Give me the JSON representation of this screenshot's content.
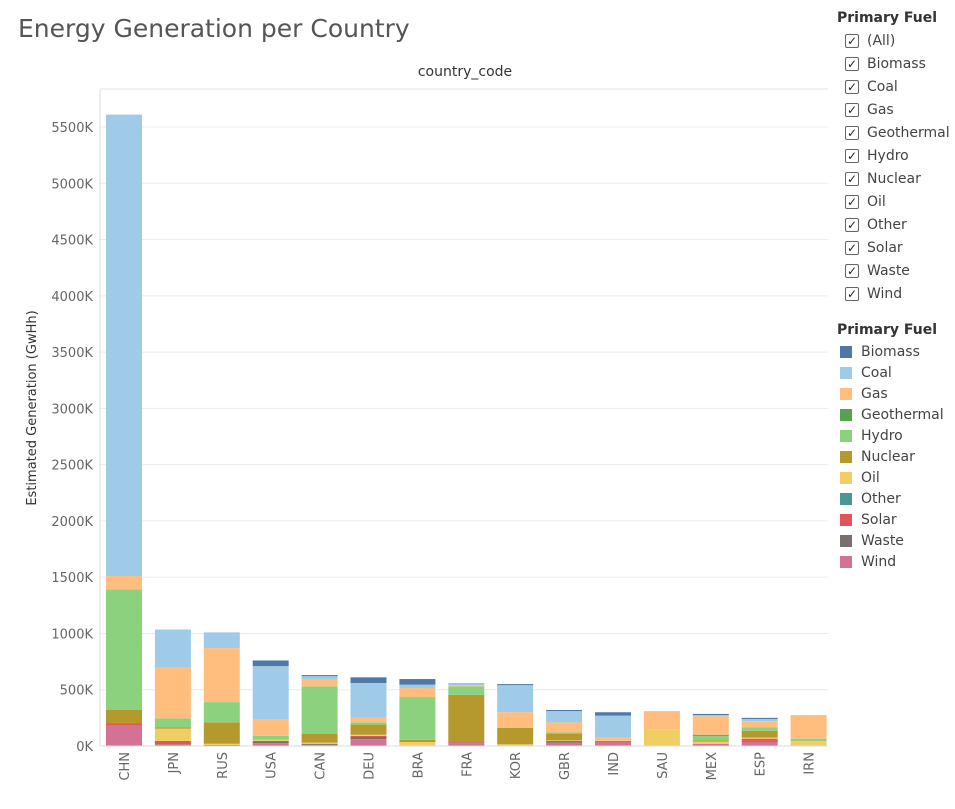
{
  "chart_data": {
    "type": "bar",
    "stacked": true,
    "title": "Energy Generation per Country",
    "column_header": "country_code",
    "xlabel": "",
    "ylabel": "Estimated Generation (GwHh)",
    "ylim": [
      0,
      5600
    ],
    "y_ticks": [
      0,
      500,
      1000,
      1500,
      2000,
      2500,
      3000,
      3500,
      4000,
      4500,
      5000,
      5500
    ],
    "y_tick_labels": [
      "0K",
      "500K",
      "1000K",
      "1500K",
      "2000K",
      "2500K",
      "3000K",
      "3500K",
      "4000K",
      "4500K",
      "5000K",
      "5500K"
    ],
    "grid": true,
    "categories": [
      "CHN",
      "JPN",
      "RUS",
      "USA",
      "CAN",
      "DEU",
      "BRA",
      "FRA",
      "KOR",
      "GBR",
      "IND",
      "SAU",
      "MEX",
      "ESP",
      "IRN"
    ],
    "series": [
      {
        "name": "Wind",
        "color": "#d37295",
        "values": [
          180,
          10,
          5,
          25,
          10,
          60,
          5,
          25,
          0,
          30,
          40,
          0,
          20,
          40,
          0
        ]
      },
      {
        "name": "Waste",
        "color": "#79706e",
        "values": [
          0,
          5,
          5,
          15,
          10,
          20,
          0,
          5,
          0,
          10,
          0,
          0,
          0,
          5,
          0
        ]
      },
      {
        "name": "Solar",
        "color": "#e15759",
        "values": [
          20,
          30,
          0,
          5,
          0,
          10,
          0,
          5,
          0,
          5,
          5,
          0,
          0,
          20,
          0
        ]
      },
      {
        "name": "Other",
        "color": "#499894",
        "values": [
          0,
          0,
          0,
          0,
          0,
          0,
          0,
          0,
          0,
          0,
          0,
          0,
          0,
          0,
          0
        ]
      },
      {
        "name": "Oil",
        "color": "#f1ce63",
        "values": [
          0,
          110,
          10,
          10,
          10,
          10,
          30,
          0,
          15,
          5,
          5,
          145,
          20,
          10,
          45
        ]
      },
      {
        "name": "Nuclear",
        "color": "#b6992d",
        "values": [
          120,
          10,
          190,
          0,
          80,
          90,
          20,
          420,
          145,
          60,
          0,
          0,
          10,
          60,
          0
        ]
      },
      {
        "name": "Hydro",
        "color": "#8cd17d",
        "values": [
          1070,
          80,
          180,
          35,
          420,
          20,
          380,
          75,
          0,
          10,
          0,
          0,
          40,
          30,
          20
        ]
      },
      {
        "name": "Geothermal",
        "color": "#59a14f",
        "values": [
          0,
          0,
          0,
          0,
          0,
          0,
          0,
          0,
          0,
          0,
          0,
          0,
          10,
          0,
          0
        ]
      },
      {
        "name": "Gas",
        "color": "#ffbe7d",
        "values": [
          120,
          450,
          480,
          150,
          60,
          40,
          80,
          10,
          140,
          90,
          30,
          165,
          165,
          55,
          210
        ]
      },
      {
        "name": "Coal",
        "color": "#a0cbe8",
        "values": [
          4100,
          340,
          140,
          470,
          30,
          310,
          30,
          10,
          240,
          100,
          190,
          0,
          10,
          20,
          0
        ]
      },
      {
        "name": "Biomass",
        "color": "#4e79a7",
        "values": [
          0,
          0,
          0,
          50,
          10,
          50,
          50,
          5,
          10,
          10,
          30,
          0,
          10,
          10,
          0
        ]
      }
    ]
  },
  "filter": {
    "title": "Primary Fuel",
    "check_mark": "✓",
    "items": [
      "(All)",
      "Biomass",
      "Coal",
      "Gas",
      "Geothermal",
      "Hydro",
      "Nuclear",
      "Oil",
      "Other",
      "Solar",
      "Waste",
      "Wind"
    ]
  },
  "legend": {
    "title": "Primary Fuel",
    "items": [
      {
        "label": "Biomass",
        "color": "#4e79a7"
      },
      {
        "label": "Coal",
        "color": "#a0cbe8"
      },
      {
        "label": "Gas",
        "color": "#ffbe7d"
      },
      {
        "label": "Geothermal",
        "color": "#59a14f"
      },
      {
        "label": "Hydro",
        "color": "#8cd17d"
      },
      {
        "label": "Nuclear",
        "color": "#b6992d"
      },
      {
        "label": "Oil",
        "color": "#f1ce63"
      },
      {
        "label": "Other",
        "color": "#499894"
      },
      {
        "label": "Solar",
        "color": "#e15759"
      },
      {
        "label": "Waste",
        "color": "#79706e"
      },
      {
        "label": "Wind",
        "color": "#d37295"
      }
    ]
  }
}
